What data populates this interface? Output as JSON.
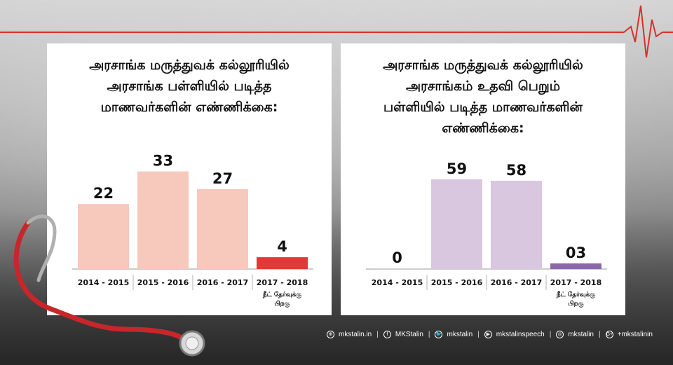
{
  "chart_data": [
    {
      "type": "bar",
      "title_lines": [
        "அரசாங்க மருத்துவக் கல்லூரியில்",
        "அரசாங்க பள்ளியில் படித்த",
        "மாணவர்களின் எண்ணிக்கை:"
      ],
      "categories": [
        "2014 - 2015",
        "2015 - 2016",
        "2016 - 2017",
        "2017 - 2018"
      ],
      "values": [
        22,
        33,
        27,
        4
      ],
      "value_labels": [
        "22",
        "33",
        "27",
        "4"
      ],
      "note_lines": [
        "நீட் தேர்வுக்கு",
        "பிறகு"
      ],
      "ylim": [
        0,
        36
      ],
      "bar_color": "#f6c9bc",
      "highlight_color": "#e0393a"
    },
    {
      "type": "bar",
      "title_lines": [
        "அரசாங்க மருத்துவக் கல்லூரியில்",
        "அரசாங்கம் உதவி பெறும்",
        "பள்ளியில் படித்த மாணவர்களின்",
        "எண்ணிக்கை:"
      ],
      "categories": [
        "2014 - 2015",
        "2015 - 2016",
        "2016 - 2017",
        "2017 - 2018"
      ],
      "values": [
        0,
        59,
        58,
        3
      ],
      "value_labels": [
        "0",
        "59",
        "58",
        "03"
      ],
      "note_lines": [
        "நீட் தேர்வுக்கு",
        "பிறகு"
      ],
      "ylim": [
        0,
        70
      ],
      "bar_color": "#d9c6df",
      "highlight_color": "#8b6aa3"
    }
  ],
  "footer": [
    {
      "icon": "globe-icon",
      "glyph": "⊕",
      "text": "mkstalin.in"
    },
    {
      "icon": "facebook-icon",
      "glyph": "f",
      "text": "MKStalin"
    },
    {
      "icon": "twitter-icon",
      "glyph": "🐦",
      "text": "mkstalin"
    },
    {
      "icon": "youtube-icon",
      "glyph": "▶",
      "text": "mkstalinspeech"
    },
    {
      "icon": "instagram-icon",
      "glyph": "◎",
      "text": "mkstalin"
    },
    {
      "icon": "googleplus-icon",
      "glyph": "G+",
      "text": "+mkstalinin"
    }
  ],
  "colors": {
    "heartbeat": "#d9302c",
    "stethoscope": "#c8262a"
  }
}
